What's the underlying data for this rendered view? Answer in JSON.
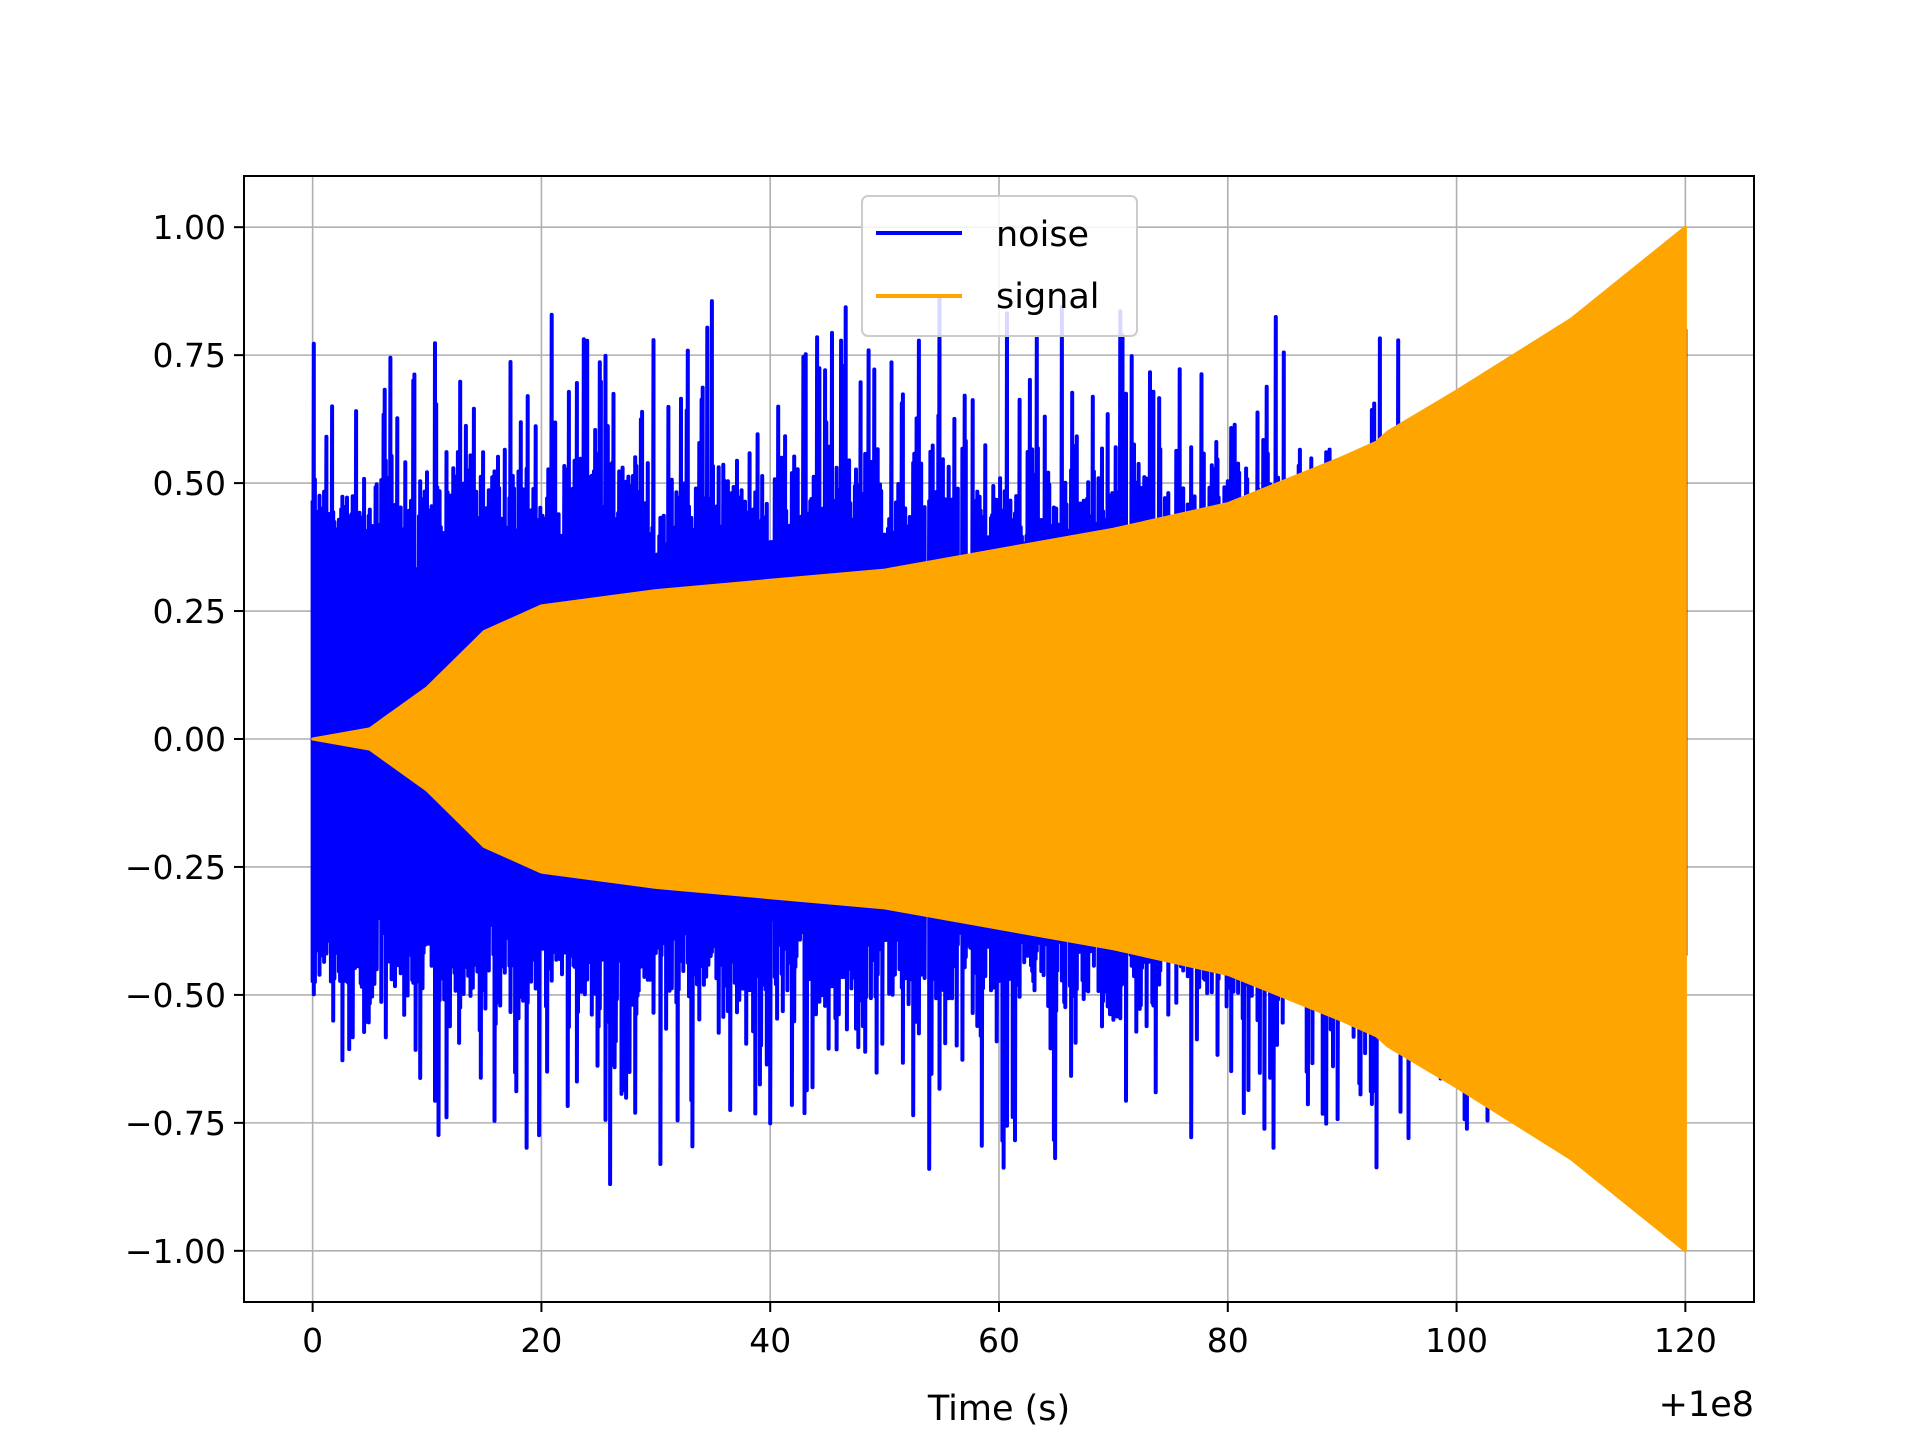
{
  "chart_data": {
    "type": "line",
    "title": "",
    "xlabel": "Time (s)",
    "ylabel": "",
    "x_offset_label": "+1e8",
    "xlim": [
      -6,
      126
    ],
    "ylim": [
      -1.1,
      1.1
    ],
    "x_ticks": [
      0,
      20,
      40,
      60,
      80,
      100,
      120
    ],
    "x_tick_labels": [
      "0",
      "20",
      "40",
      "60",
      "80",
      "100",
      "120"
    ],
    "y_ticks": [
      -1.0,
      -0.75,
      -0.5,
      -0.25,
      0.0,
      0.25,
      0.5,
      0.75,
      1.0
    ],
    "y_tick_labels": [
      "−1.00",
      "−0.75",
      "−0.50",
      "−0.25",
      "0.00",
      "0.25",
      "0.50",
      "0.75",
      "1.00"
    ],
    "grid": true,
    "legend_position": "upper-center",
    "series": [
      {
        "name": "noise",
        "color": "#0000ff",
        "x_range": [
          0,
          120
        ],
        "envelope_typical": 0.4,
        "peak_min": -0.97,
        "peak_max": 1.0
      },
      {
        "name": "signal",
        "color": "#ffa500",
        "x_range": [
          0,
          120
        ],
        "envelope": [
          {
            "x": 0,
            "y": 0.0
          },
          {
            "x": 5,
            "y": 0.02
          },
          {
            "x": 10,
            "y": 0.1
          },
          {
            "x": 15,
            "y": 0.21
          },
          {
            "x": 20,
            "y": 0.26
          },
          {
            "x": 30,
            "y": 0.29
          },
          {
            "x": 40,
            "y": 0.31
          },
          {
            "x": 50,
            "y": 0.33
          },
          {
            "x": 60,
            "y": 0.37
          },
          {
            "x": 70,
            "y": 0.41
          },
          {
            "x": 80,
            "y": 0.46
          },
          {
            "x": 90,
            "y": 0.55
          },
          {
            "x": 93,
            "y": 0.58
          },
          {
            "x": 94,
            "y": 0.6
          },
          {
            "x": 100,
            "y": 0.68
          },
          {
            "x": 110,
            "y": 0.82
          },
          {
            "x": 120,
            "y": 1.0
          }
        ]
      }
    ]
  }
}
